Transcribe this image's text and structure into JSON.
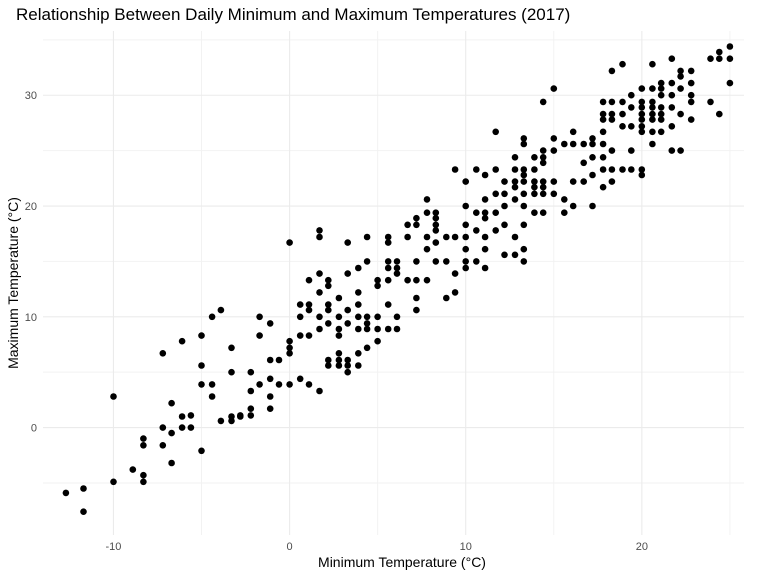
{
  "chart_data": {
    "type": "scatter",
    "title": "Relationship Between Daily Minimum and Maximum Temperatures (2017)",
    "xlabel": "Minimum Temperature (°C)",
    "ylabel": "Maximum Temperature (°C)",
    "xlim": [
      -14,
      25.8
    ],
    "ylim": [
      -9.7,
      35.8
    ],
    "xticks": [
      -10,
      0,
      10,
      20
    ],
    "xtick_labels": [
      "-10",
      "0",
      "10",
      "20"
    ],
    "yticks": [
      0,
      10,
      20,
      30
    ],
    "ytick_labels": [
      "0",
      "10",
      "20",
      "30"
    ],
    "grid": true,
    "point_color": "#000000",
    "points": [
      [
        -12.7,
        -5.9
      ],
      [
        -11.7,
        -5.5
      ],
      [
        -11.7,
        -7.6
      ],
      [
        -10.0,
        -4.9
      ],
      [
        -10.0,
        2.8
      ],
      [
        -8.9,
        -3.8
      ],
      [
        -8.3,
        -4.9
      ],
      [
        -8.3,
        -4.3
      ],
      [
        -8.3,
        -1.6
      ],
      [
        -8.3,
        -1.0
      ],
      [
        -7.2,
        -1.6
      ],
      [
        -7.2,
        0.0
      ],
      [
        -7.2,
        6.7
      ],
      [
        -6.7,
        -3.2
      ],
      [
        -6.7,
        -0.5
      ],
      [
        -6.7,
        2.2
      ],
      [
        -6.1,
        0.0
      ],
      [
        -6.1,
        1.0
      ],
      [
        -6.1,
        7.8
      ],
      [
        -5.6,
        0.0
      ],
      [
        -5.6,
        1.1
      ],
      [
        -5.0,
        -2.1
      ],
      [
        -5.0,
        3.9
      ],
      [
        -5.0,
        5.6
      ],
      [
        -5.0,
        8.3
      ],
      [
        -4.4,
        3.9
      ],
      [
        -4.4,
        2.8
      ],
      [
        -4.4,
        10.0
      ],
      [
        -3.9,
        10.6
      ],
      [
        -3.9,
        0.6
      ],
      [
        -3.3,
        0.6
      ],
      [
        -3.3,
        1.0
      ],
      [
        -3.3,
        5.0
      ],
      [
        -3.3,
        7.2
      ],
      [
        -2.8,
        1.0
      ],
      [
        -2.8,
        1.1
      ],
      [
        -2.2,
        1.1
      ],
      [
        -2.2,
        1.7
      ],
      [
        -2.2,
        3.3
      ],
      [
        -2.2,
        5.0
      ],
      [
        -1.7,
        3.9
      ],
      [
        -1.7,
        8.3
      ],
      [
        -1.7,
        10.0
      ],
      [
        -1.1,
        2.8
      ],
      [
        -1.1,
        4.4
      ],
      [
        -1.1,
        6.1
      ],
      [
        -1.1,
        9.4
      ],
      [
        -1.1,
        1.7
      ],
      [
        -0.6,
        3.9
      ],
      [
        -0.6,
        6.1
      ],
      [
        0.0,
        3.9
      ],
      [
        0.0,
        6.7
      ],
      [
        0.0,
        7.2
      ],
      [
        0.0,
        7.8
      ],
      [
        0.0,
        16.7
      ],
      [
        0.6,
        4.4
      ],
      [
        0.6,
        8.3
      ],
      [
        0.6,
        10.0
      ],
      [
        0.6,
        11.1
      ],
      [
        1.1,
        3.9
      ],
      [
        1.1,
        8.3
      ],
      [
        1.1,
        10.6
      ],
      [
        1.1,
        11.1
      ],
      [
        1.1,
        13.3
      ],
      [
        1.7,
        3.3
      ],
      [
        1.7,
        8.9
      ],
      [
        1.7,
        10.0
      ],
      [
        1.7,
        12.2
      ],
      [
        1.7,
        13.9
      ],
      [
        1.7,
        17.2
      ],
      [
        1.7,
        17.8
      ],
      [
        2.2,
        5.6
      ],
      [
        2.2,
        6.1
      ],
      [
        2.2,
        9.4
      ],
      [
        2.2,
        10.6
      ],
      [
        2.2,
        11.1
      ],
      [
        2.2,
        12.8
      ],
      [
        2.2,
        13.3
      ],
      [
        2.8,
        5.6
      ],
      [
        2.8,
        6.1
      ],
      [
        2.8,
        6.7
      ],
      [
        2.8,
        8.3
      ],
      [
        2.8,
        8.9
      ],
      [
        2.8,
        10.0
      ],
      [
        2.8,
        11.7
      ],
      [
        3.3,
        5.0
      ],
      [
        3.3,
        5.6
      ],
      [
        3.3,
        6.1
      ],
      [
        3.3,
        9.4
      ],
      [
        3.3,
        10.6
      ],
      [
        3.3,
        13.9
      ],
      [
        3.3,
        16.7
      ],
      [
        3.9,
        5.6
      ],
      [
        3.9,
        6.7
      ],
      [
        3.9,
        8.9
      ],
      [
        3.9,
        10.0
      ],
      [
        3.9,
        11.1
      ],
      [
        3.9,
        12.2
      ],
      [
        3.9,
        14.4
      ],
      [
        4.4,
        7.2
      ],
      [
        4.4,
        8.9
      ],
      [
        4.4,
        9.4
      ],
      [
        4.4,
        10.0
      ],
      [
        4.4,
        15.0
      ],
      [
        4.4,
        17.2
      ],
      [
        5.0,
        7.8
      ],
      [
        5.0,
        8.9
      ],
      [
        5.0,
        10.0
      ],
      [
        5.0,
        12.8
      ],
      [
        5.0,
        13.3
      ],
      [
        5.6,
        8.9
      ],
      [
        5.6,
        11.1
      ],
      [
        5.6,
        13.3
      ],
      [
        5.6,
        14.4
      ],
      [
        5.6,
        15.0
      ],
      [
        5.6,
        16.7
      ],
      [
        5.6,
        17.2
      ],
      [
        6.1,
        8.9
      ],
      [
        6.1,
        10.0
      ],
      [
        6.1,
        13.9
      ],
      [
        6.1,
        14.4
      ],
      [
        6.1,
        15.0
      ],
      [
        6.7,
        13.3
      ],
      [
        6.7,
        17.2
      ],
      [
        6.7,
        18.3
      ],
      [
        7.2,
        10.6
      ],
      [
        7.2,
        11.7
      ],
      [
        7.2,
        13.3
      ],
      [
        7.2,
        15.0
      ],
      [
        7.2,
        18.3
      ],
      [
        7.2,
        18.9
      ],
      [
        7.8,
        13.3
      ],
      [
        7.8,
        16.1
      ],
      [
        7.8,
        17.2
      ],
      [
        7.8,
        19.4
      ],
      [
        7.8,
        20.6
      ],
      [
        8.3,
        15.0
      ],
      [
        8.3,
        16.7
      ],
      [
        8.3,
        17.8
      ],
      [
        8.3,
        18.3
      ],
      [
        8.3,
        18.9
      ],
      [
        8.3,
        19.4
      ],
      [
        8.9,
        11.7
      ],
      [
        8.9,
        15.0
      ],
      [
        8.9,
        17.2
      ],
      [
        9.4,
        12.2
      ],
      [
        9.4,
        13.9
      ],
      [
        9.4,
        17.2
      ],
      [
        9.4,
        23.3
      ],
      [
        10.0,
        14.4
      ],
      [
        10.0,
        15.0
      ],
      [
        10.0,
        16.1
      ],
      [
        10.0,
        17.2
      ],
      [
        10.0,
        18.3
      ],
      [
        10.0,
        20.0
      ],
      [
        10.0,
        22.2
      ],
      [
        10.6,
        15.0
      ],
      [
        10.6,
        17.8
      ],
      [
        10.6,
        19.4
      ],
      [
        10.6,
        23.3
      ],
      [
        11.1,
        14.4
      ],
      [
        11.1,
        16.1
      ],
      [
        11.1,
        17.2
      ],
      [
        11.1,
        18.9
      ],
      [
        11.1,
        19.4
      ],
      [
        11.1,
        20.6
      ],
      [
        11.1,
        22.8
      ],
      [
        11.7,
        17.8
      ],
      [
        11.7,
        19.4
      ],
      [
        11.7,
        21.1
      ],
      [
        11.7,
        23.3
      ],
      [
        11.7,
        26.7
      ],
      [
        12.2,
        15.6
      ],
      [
        12.2,
        18.3
      ],
      [
        12.2,
        20.0
      ],
      [
        12.2,
        21.1
      ],
      [
        12.2,
        22.2
      ],
      [
        12.8,
        15.6
      ],
      [
        12.8,
        17.2
      ],
      [
        12.8,
        20.6
      ],
      [
        12.8,
        21.7
      ],
      [
        12.8,
        22.2
      ],
      [
        12.8,
        23.3
      ],
      [
        12.8,
        24.4
      ],
      [
        13.3,
        15.0
      ],
      [
        13.3,
        16.1
      ],
      [
        13.3,
        18.3
      ],
      [
        13.3,
        20.0
      ],
      [
        13.3,
        21.1
      ],
      [
        13.3,
        22.2
      ],
      [
        13.3,
        22.8
      ],
      [
        13.3,
        23.3
      ],
      [
        13.3,
        25.6
      ],
      [
        13.3,
        26.1
      ],
      [
        13.9,
        19.4
      ],
      [
        13.9,
        21.1
      ],
      [
        13.9,
        21.7
      ],
      [
        13.9,
        22.2
      ],
      [
        13.9,
        23.3
      ],
      [
        13.9,
        24.4
      ],
      [
        14.4,
        19.4
      ],
      [
        14.4,
        21.1
      ],
      [
        14.4,
        21.7
      ],
      [
        14.4,
        22.2
      ],
      [
        14.4,
        23.9
      ],
      [
        14.4,
        24.4
      ],
      [
        14.4,
        25.0
      ],
      [
        14.4,
        29.4
      ],
      [
        15.0,
        21.1
      ],
      [
        15.0,
        22.2
      ],
      [
        15.0,
        25.0
      ],
      [
        15.0,
        26.1
      ],
      [
        15.0,
        30.6
      ],
      [
        15.6,
        19.4
      ],
      [
        15.6,
        20.6
      ],
      [
        15.6,
        25.6
      ],
      [
        16.1,
        20.0
      ],
      [
        16.1,
        22.2
      ],
      [
        16.1,
        25.6
      ],
      [
        16.1,
        26.7
      ],
      [
        16.7,
        22.2
      ],
      [
        16.7,
        23.9
      ],
      [
        16.7,
        25.6
      ],
      [
        17.2,
        20.0
      ],
      [
        17.2,
        22.8
      ],
      [
        17.2,
        24.4
      ],
      [
        17.2,
        25.6
      ],
      [
        17.2,
        26.1
      ],
      [
        17.8,
        21.7
      ],
      [
        17.8,
        23.3
      ],
      [
        17.8,
        24.4
      ],
      [
        17.8,
        25.6
      ],
      [
        17.8,
        26.7
      ],
      [
        17.8,
        27.8
      ],
      [
        17.8,
        28.3
      ],
      [
        17.8,
        29.4
      ],
      [
        18.3,
        22.2
      ],
      [
        18.3,
        23.3
      ],
      [
        18.3,
        25.0
      ],
      [
        18.3,
        27.8
      ],
      [
        18.3,
        28.3
      ],
      [
        18.3,
        29.4
      ],
      [
        18.3,
        32.2
      ],
      [
        18.9,
        23.3
      ],
      [
        18.9,
        27.2
      ],
      [
        18.9,
        28.3
      ],
      [
        18.9,
        29.4
      ],
      [
        18.9,
        32.8
      ],
      [
        19.4,
        23.3
      ],
      [
        19.4,
        25.0
      ],
      [
        19.4,
        27.2
      ],
      [
        19.4,
        28.9
      ],
      [
        19.4,
        30.0
      ],
      [
        20.0,
        22.8
      ],
      [
        20.0,
        23.3
      ],
      [
        20.0,
        26.7
      ],
      [
        20.0,
        27.2
      ],
      [
        20.0,
        27.8
      ],
      [
        20.0,
        28.3
      ],
      [
        20.0,
        28.9
      ],
      [
        20.0,
        29.4
      ],
      [
        20.0,
        30.6
      ],
      [
        20.6,
        25.6
      ],
      [
        20.6,
        26.7
      ],
      [
        20.6,
        27.8
      ],
      [
        20.6,
        28.3
      ],
      [
        20.6,
        28.9
      ],
      [
        20.6,
        29.4
      ],
      [
        20.6,
        30.6
      ],
      [
        20.6,
        32.8
      ],
      [
        21.1,
        26.7
      ],
      [
        21.1,
        27.8
      ],
      [
        21.1,
        28.3
      ],
      [
        21.1,
        28.9
      ],
      [
        21.1,
        30.0
      ],
      [
        21.1,
        30.6
      ],
      [
        21.1,
        31.1
      ],
      [
        21.7,
        25.0
      ],
      [
        21.7,
        27.2
      ],
      [
        21.7,
        28.9
      ],
      [
        21.7,
        30.0
      ],
      [
        21.7,
        31.1
      ],
      [
        21.7,
        33.3
      ],
      [
        22.2,
        25.0
      ],
      [
        22.2,
        28.3
      ],
      [
        22.2,
        30.6
      ],
      [
        22.2,
        31.7
      ],
      [
        22.2,
        32.2
      ],
      [
        22.8,
        27.8
      ],
      [
        22.8,
        29.4
      ],
      [
        22.8,
        30.0
      ],
      [
        22.8,
        31.1
      ],
      [
        22.8,
        32.2
      ],
      [
        23.9,
        29.4
      ],
      [
        23.9,
        33.3
      ],
      [
        24.4,
        28.3
      ],
      [
        24.4,
        33.3
      ],
      [
        24.4,
        33.9
      ],
      [
        25.0,
        31.1
      ],
      [
        25.0,
        33.3
      ],
      [
        25.0,
        34.4
      ]
    ]
  }
}
